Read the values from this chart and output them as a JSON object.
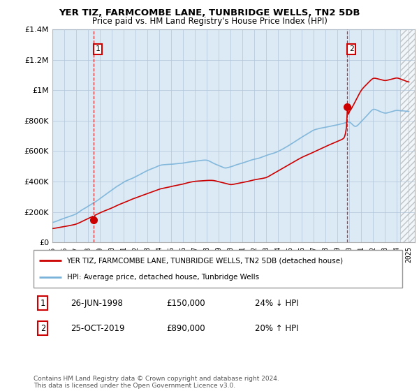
{
  "title": "YER TIZ, FARMCOMBE LANE, TUNBRIDGE WELLS, TN2 5DB",
  "subtitle": "Price paid vs. HM Land Registry's House Price Index (HPI)",
  "ylim": [
    0,
    1400000
  ],
  "yticks": [
    0,
    200000,
    400000,
    600000,
    800000,
    1000000,
    1200000,
    1400000
  ],
  "sale1_date": 1998.49,
  "sale1_price": 150000,
  "sale2_date": 2019.81,
  "sale2_price": 890000,
  "hpi_color": "#7ab3d9",
  "price_color": "#cc0000",
  "dashed_color": "#cc0000",
  "plot_bg_color": "#dceaf5",
  "hatch_color": "#c8d8e8",
  "legend_label1": "YER TIZ, FARMCOMBE LANE, TUNBRIDGE WELLS, TN2 5DB (detached house)",
  "legend_label2": "HPI: Average price, detached house, Tunbridge Wells",
  "table_row1": [
    "1",
    "26-JUN-1998",
    "£150,000",
    "24% ↓ HPI"
  ],
  "table_row2": [
    "2",
    "25-OCT-2019",
    "£890,000",
    "20% ↑ HPI"
  ],
  "footer": "Contains HM Land Registry data © Crown copyright and database right 2024.\nThis data is licensed under the Open Government Licence v3.0.",
  "grid_color": "#b0c4d8",
  "xstart": 1995,
  "xend": 2025
}
